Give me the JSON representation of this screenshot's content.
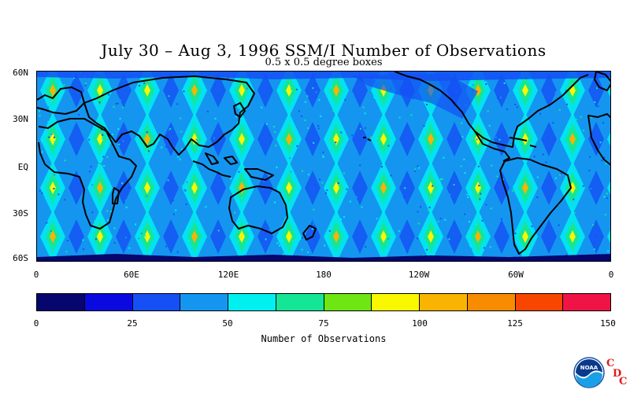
{
  "title": "July 30 – Aug 3, 1996 SSM/I Number of Observations",
  "subtitle": "0.5 x 0.5 degree boxes",
  "map": {
    "latitude_labels": [
      "60N",
      "30N",
      "EQ",
      "30S",
      "60S"
    ],
    "longitude_labels": [
      "0",
      "60E",
      "120E",
      "180",
      "120W",
      "60W",
      "0"
    ]
  },
  "colorbar": {
    "title": "Number of Observations",
    "tick_labels": [
      "0",
      "25",
      "50",
      "75",
      "100",
      "125",
      "150"
    ],
    "colors": [
      "#06066e",
      "#0a0ae0",
      "#1450f4",
      "#1496f0",
      "#00f0f0",
      "#14e696",
      "#6ee614",
      "#f8f800",
      "#f8b400",
      "#f88c00",
      "#f84600",
      "#f01446"
    ]
  },
  "logo": {
    "name": "noaa-logo",
    "text": "NOAA",
    "cdc_letters": [
      "C",
      "D",
      "C"
    ]
  }
}
